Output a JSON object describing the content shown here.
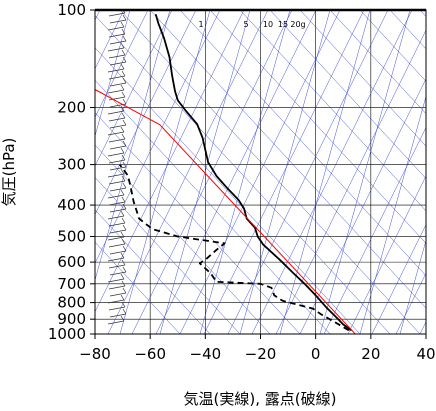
{
  "chart_data": {
    "type": "line",
    "xlabel": "気温(実線), 露点(破線)",
    "ylabel": "気圧(hPa)",
    "xlim": [
      -80,
      40
    ],
    "ylim": [
      1000,
      100
    ],
    "y_scale": "log",
    "x_ticks": [
      "−80",
      "−60",
      "−40",
      "−20",
      "0",
      "20",
      "40"
    ],
    "x_tick_values": [
      -80,
      -60,
      -40,
      -20,
      0,
      20,
      40
    ],
    "y_ticks": [
      "100",
      "200",
      "300",
      "400",
      "500",
      "600",
      "700",
      "800",
      "900",
      "1000"
    ],
    "y_tick_values": [
      100,
      200,
      300,
      400,
      500,
      600,
      700,
      800,
      900,
      1000
    ],
    "mixing_ratio_labels": [
      "1",
      "5",
      "10",
      "15",
      "20g"
    ],
    "series": [
      {
        "style": "solid",
        "color": "#000000",
        "points": [
          [
            13,
            975
          ],
          [
            10,
            935
          ],
          [
            7,
            880
          ],
          [
            4,
            830
          ],
          [
            0,
            760
          ],
          [
            -4,
            700
          ],
          [
            -8,
            650
          ],
          [
            -13,
            590
          ],
          [
            -19,
            530
          ],
          [
            -21,
            500
          ],
          [
            -22,
            470
          ],
          [
            -25,
            440
          ],
          [
            -26,
            410
          ],
          [
            -28,
            385
          ],
          [
            -32,
            355
          ],
          [
            -36,
            325
          ],
          [
            -39,
            295
          ],
          [
            -40,
            270
          ],
          [
            -41,
            248
          ],
          [
            -43,
            225
          ],
          [
            -47,
            205
          ],
          [
            -50,
            190
          ],
          [
            -51,
            178
          ],
          [
            -52,
            160
          ],
          [
            -53,
            140
          ],
          [
            -55,
            122
          ],
          [
            -57,
            110
          ],
          [
            -58,
            103
          ]
        ]
      },
      {
        "style": "dashed",
        "color": "#000000",
        "points": [
          [
            12,
            975
          ],
          [
            8,
            930
          ],
          [
            2,
            870
          ],
          [
            -1,
            835
          ],
          [
            -12,
            790
          ],
          [
            -15,
            760
          ],
          [
            -16,
            720
          ],
          [
            -20,
            700
          ],
          [
            -36,
            690
          ],
          [
            -38,
            650
          ],
          [
            -42,
            605
          ],
          [
            -40,
            590
          ],
          [
            -38,
            570
          ],
          [
            -36,
            550
          ],
          [
            -33,
            525
          ],
          [
            -50,
            500
          ],
          [
            -59,
            475
          ],
          [
            -62,
            455
          ],
          [
            -64,
            440
          ],
          [
            -66,
            390
          ],
          [
            -67,
            355
          ],
          [
            -68,
            325
          ],
          [
            -71,
            300
          ]
        ]
      },
      {
        "style": "reference",
        "color": "#ff0000",
        "points": [
          [
            15,
            1013
          ],
          [
            -56.5,
            226
          ],
          [
            -80,
            176
          ]
        ]
      }
    ],
    "grid": true,
    "legend": "none"
  }
}
